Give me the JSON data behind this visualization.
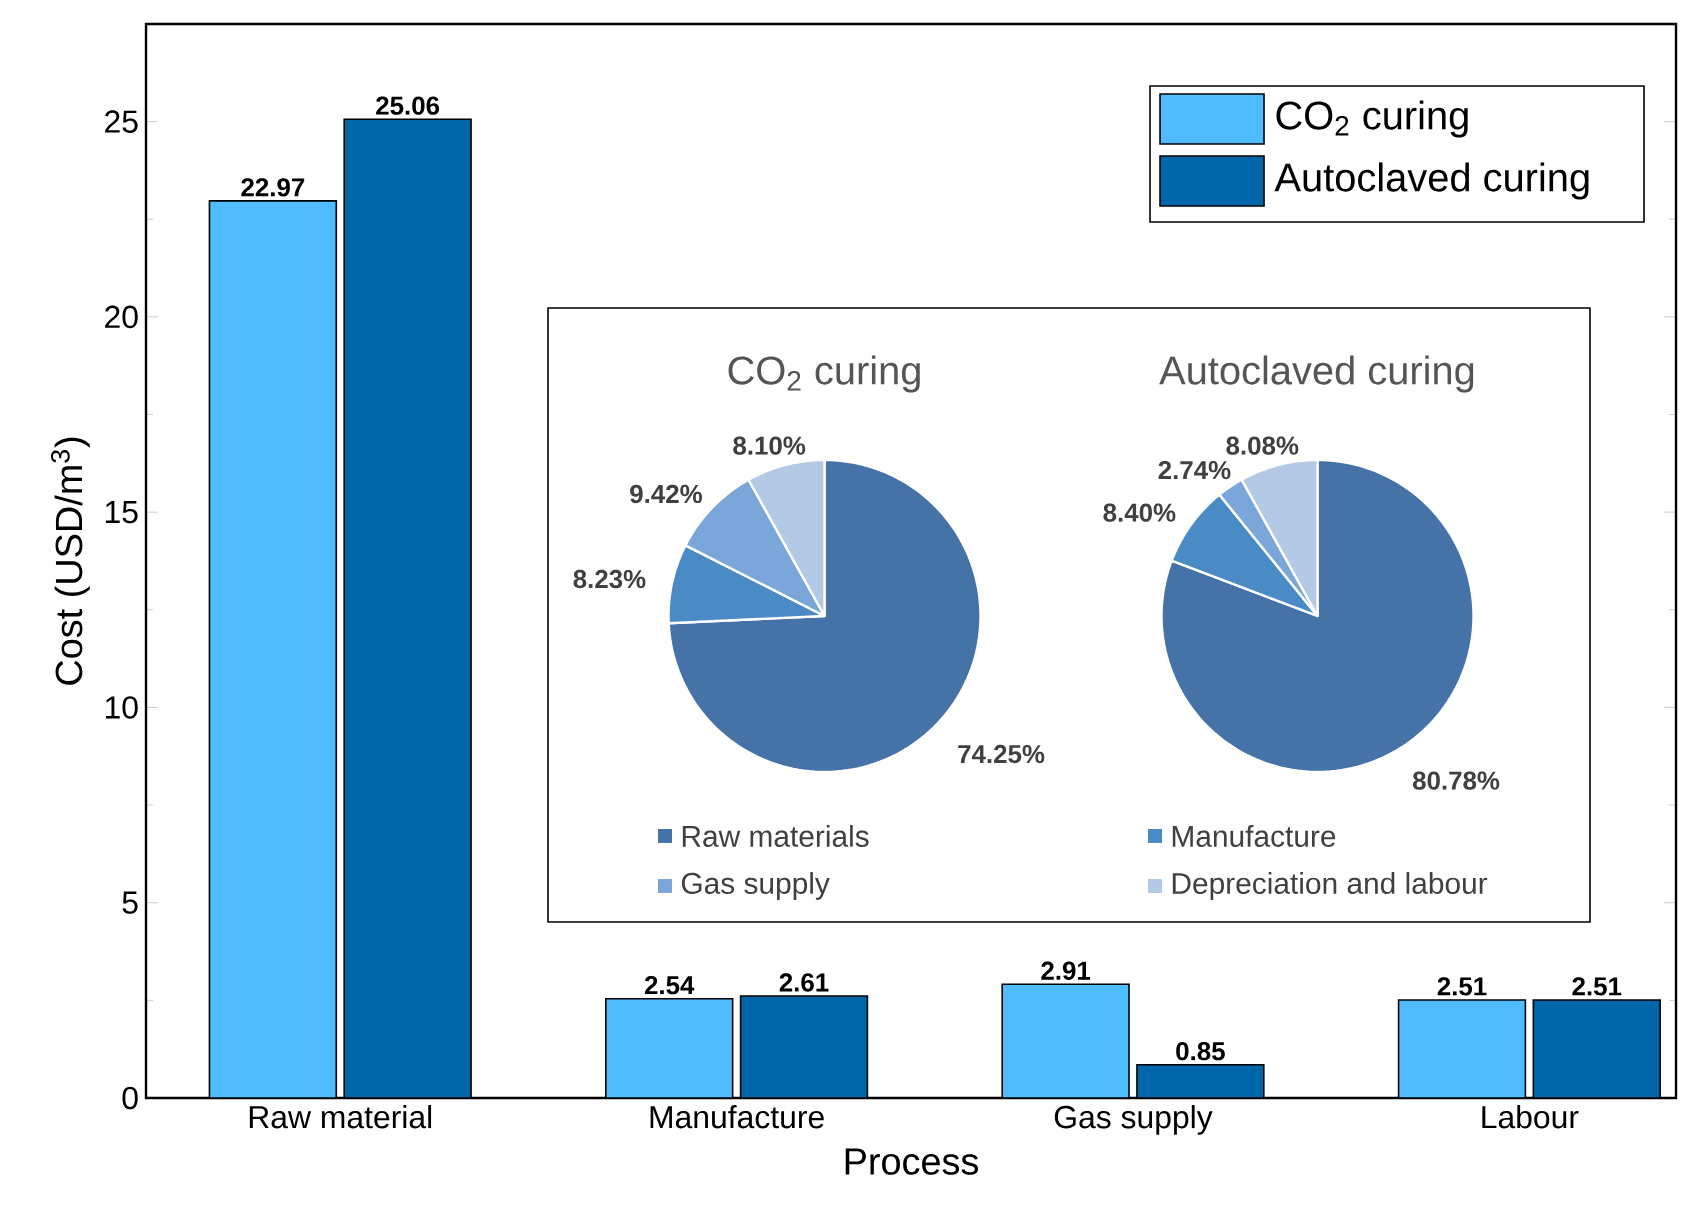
{
  "chart_data": [
    {
      "type": "bar",
      "xlabel": "Process",
      "ylabel": "Cost (USD/m$^{3}$)",
      "categories": [
        "Raw material",
        "Manufacture",
        "Gas supply",
        "Labour"
      ],
      "series": [
        {
          "name": "CO$_{2}$ curing",
          "color": "#4fbcff",
          "values": [
            22.97,
            2.54,
            2.91,
            2.51
          ]
        },
        {
          "name": "Autoclaved curing",
          "color": "#0066aa",
          "values": [
            25.06,
            2.61,
            0.85,
            2.51
          ]
        }
      ],
      "ylim": [
        0,
        27.5
      ],
      "yticks": [
        0,
        5,
        10,
        15,
        20,
        25
      ],
      "data_labels": true,
      "legend": "top right"
    },
    {
      "type": "pie",
      "categories": [
        "Raw materials",
        "Manufacture",
        "Gas supply",
        "Depreciation and labour"
      ],
      "colors": [
        "#4572a7",
        "#4a8bc6",
        "#7ba6d9",
        "#b3c9e5"
      ],
      "series": [
        {
          "name": "CO$_{2}$ curing",
          "values": [
            74.25,
            8.23,
            9.42,
            8.1
          ],
          "value_labels": [
            "74.25%",
            "8.23%",
            "9.42%",
            "8.10%"
          ]
        },
        {
          "name": "Autoclaved curing",
          "values": [
            80.78,
            8.4,
            2.74,
            8.08
          ],
          "value_labels": [
            "80.78%",
            "8.40%",
            "2.74%",
            "8.08%"
          ]
        }
      ],
      "legend": "bottom"
    }
  ]
}
